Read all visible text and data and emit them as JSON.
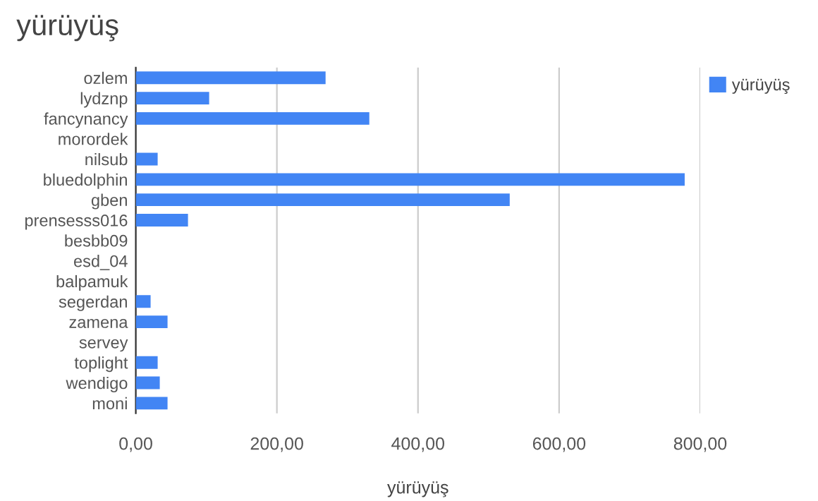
{
  "chart_data": {
    "type": "bar",
    "orientation": "horizontal",
    "title": "yürüyüş",
    "xlabel": "yürüyüş",
    "categories": [
      "ozlem",
      "lydznp",
      "fancynancy",
      "morordek",
      "nilsub",
      "bluedolphin",
      "gben",
      "prensesss016",
      "besbb09",
      "esd_04",
      "balpamuk",
      "segerdan",
      "zamena",
      "servey",
      "toplight",
      "wendigo",
      "moni"
    ],
    "series": [
      {
        "name": "yürüyüş",
        "color": "#4285f4",
        "values": [
          269,
          104,
          331,
          0,
          31,
          778,
          530,
          74,
          0,
          0,
          0,
          21,
          45,
          0,
          31,
          34,
          45
        ]
      }
    ],
    "xlim": [
      0,
      800
    ],
    "xticks": [
      {
        "value": 0,
        "label": "0,00"
      },
      {
        "value": 200,
        "label": "200,00"
      },
      {
        "value": 400,
        "label": "400,00"
      },
      {
        "value": 600,
        "label": "600,00"
      },
      {
        "value": 800,
        "label": "800,00"
      }
    ],
    "grid": "x",
    "legend": "top right"
  }
}
